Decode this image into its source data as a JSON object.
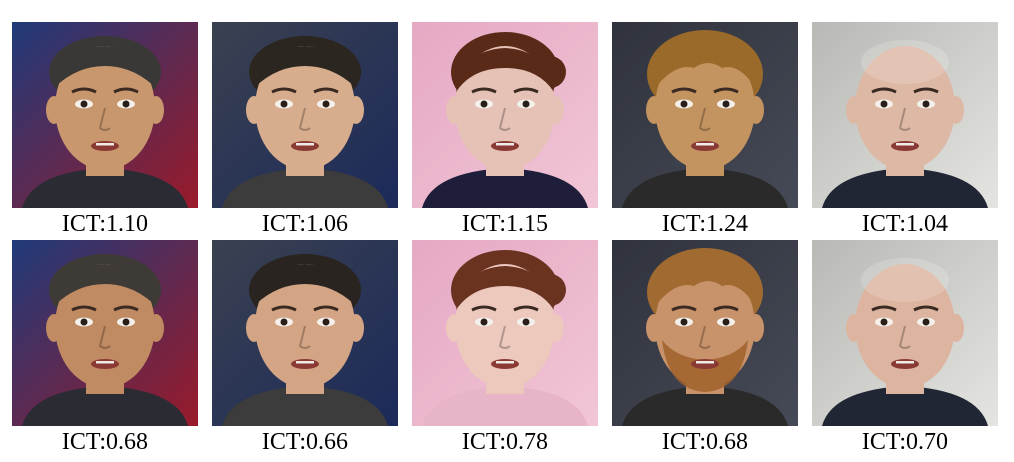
{
  "rows": [
    {
      "kind": "top",
      "items": [
        {
          "caption": "ICT:1.10",
          "bg_a": "#1f3a7a",
          "bg_b": "#9a1a2a",
          "skin": "#c9976e",
          "hair": "#3a3836",
          "shirt": "#2b2b33",
          "hair_style": "short"
        },
        {
          "caption": "ICT:1.06",
          "bg_a": "#3a4150",
          "bg_b": "#1c2a5a",
          "skin": "#d7ad8e",
          "hair": "#2c2620",
          "shirt": "#3c3c3c",
          "hair_style": "short"
        },
        {
          "caption": "ICT:1.15",
          "bg_a": "#e6a8c4",
          "bg_b": "#f1c6d6",
          "skin": "#e6c2b6",
          "hair": "#5a2a18",
          "shirt": "#1e1e3a",
          "hair_style": "bun"
        },
        {
          "caption": "ICT:1.24",
          "bg_a": "#30333d",
          "bg_b": "#464a56",
          "skin": "#c39360",
          "hair": "#9a6a2a",
          "shirt": "#2a2a2a",
          "hair_style": "messy"
        },
        {
          "caption": "ICT:1.04",
          "bg_a": "#b8b8b4",
          "bg_b": "#e4e4e0",
          "skin": "#ddb8a4",
          "hair": "#c8a898",
          "shirt": "#202634",
          "hair_style": "bald"
        }
      ]
    },
    {
      "kind": "bottom",
      "items": [
        {
          "caption": "ICT:0.68",
          "bg_a": "#1f3a7a",
          "bg_b": "#9a1a2a",
          "skin": "#c08a62",
          "hair": "#3e3a36",
          "shirt": "#2b2b33",
          "hair_style": "short"
        },
        {
          "caption": "ICT:0.66",
          "bg_a": "#3a4150",
          "bg_b": "#1c2a5a",
          "skin": "#d4a585",
          "hair": "#2a2420",
          "shirt": "#3c3c3c",
          "hair_style": "short"
        },
        {
          "caption": "ICT:0.78",
          "bg_a": "#e6a8c4",
          "bg_b": "#f1c6d6",
          "skin": "#ecc8bd",
          "hair": "#6a3320",
          "shirt": "#e8b4c8",
          "hair_style": "bun"
        },
        {
          "caption": "ICT:0.68",
          "bg_a": "#30333d",
          "bg_b": "#464a56",
          "skin": "#c8926a",
          "hair": "#a06a30",
          "shirt": "#2a2a2a",
          "hair_style": "messy",
          "beard": "#a0622a"
        },
        {
          "caption": "ICT:0.70",
          "bg_a": "#b8b8b4",
          "bg_b": "#e4e4e0",
          "skin": "#dcb4a0",
          "hair": "#c8a898",
          "shirt": "#202634",
          "hair_style": "bald"
        }
      ]
    }
  ]
}
